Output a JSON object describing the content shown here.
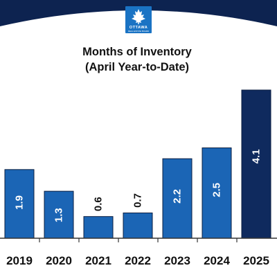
{
  "logo": {
    "line1": "OTTAWA",
    "line2": "REAL ESTATE BOARD",
    "icon": "maple-leaf-icon"
  },
  "colors": {
    "banner": "#0d2350",
    "logo_bg": "#1a73c4",
    "bar": "#1b65b5",
    "bar_highlight": "#0f2a5e",
    "bar_border": "#0b1e40",
    "axis": "#333333",
    "text": "#111111"
  },
  "chart_data": {
    "type": "bar",
    "title": "Months of Inventory",
    "subtitle": "(April Year-to-Date)",
    "categories": [
      "2019",
      "2020",
      "2021",
      "2022",
      "2023",
      "2024",
      "2025"
    ],
    "values": [
      1.9,
      1.3,
      0.6,
      0.7,
      2.2,
      2.5,
      4.1
    ],
    "data_labels": [
      "1.9",
      "1.3",
      "0.6",
      "0.7",
      "2.2",
      "2.5",
      "4.1"
    ],
    "highlight_index": 6,
    "xlabel": "",
    "ylabel": "",
    "ylim": [
      0,
      4.1
    ],
    "grid": false,
    "legend": "none"
  }
}
